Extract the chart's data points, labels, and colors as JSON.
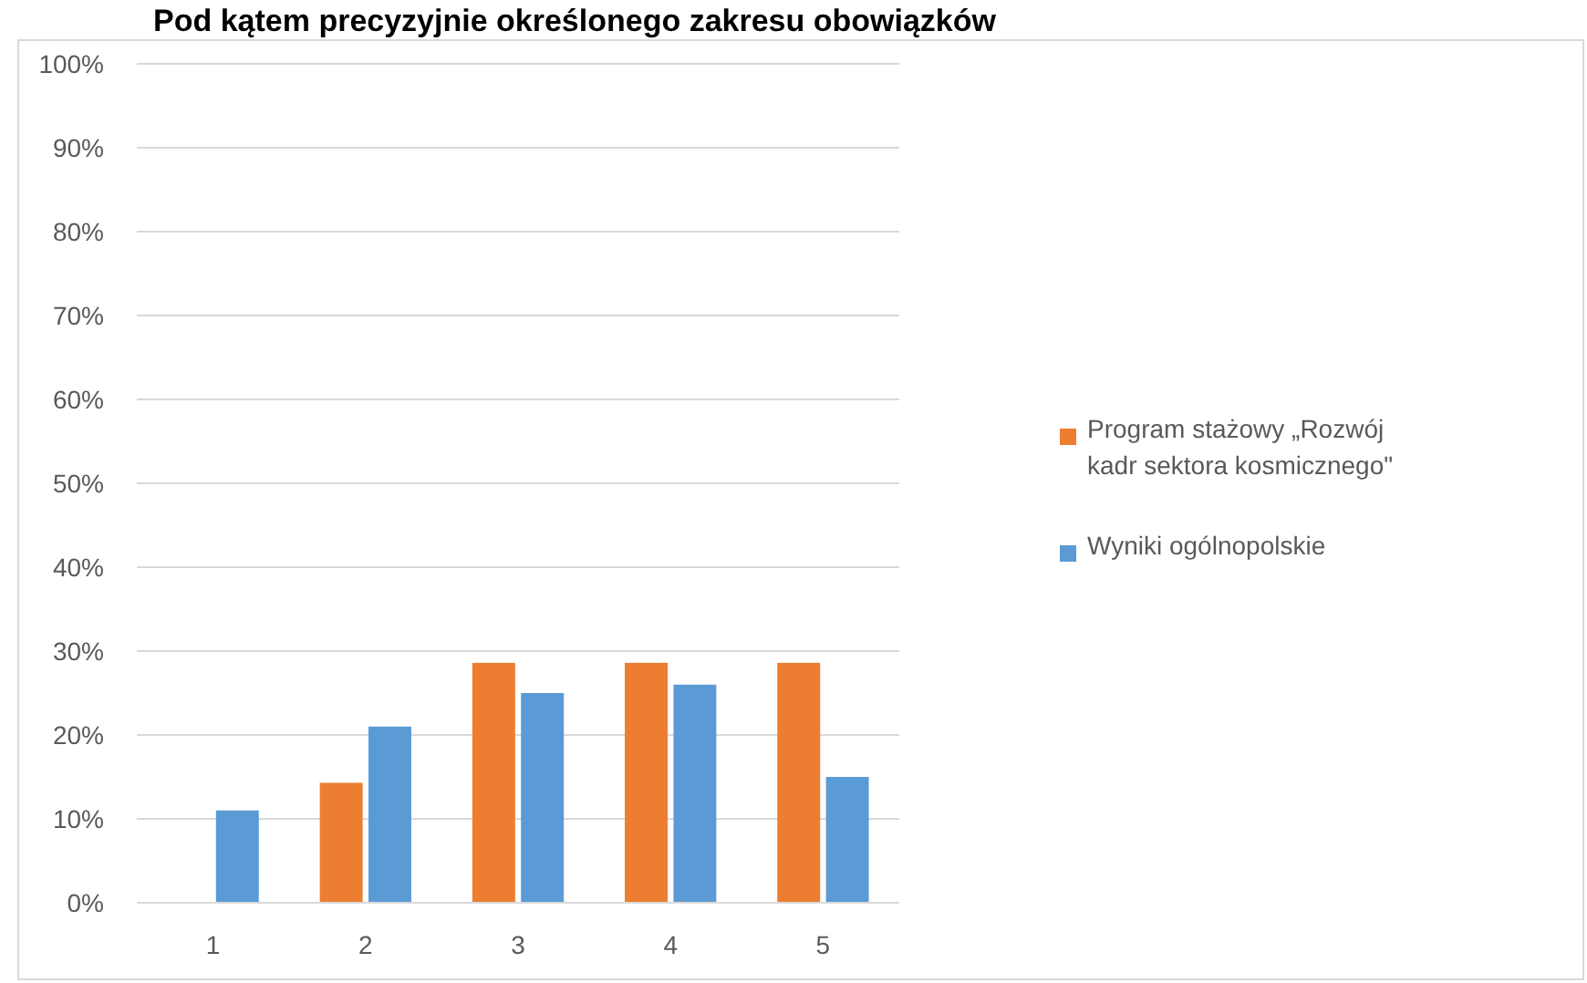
{
  "chart_data": {
    "type": "bar",
    "title": "Pod kątem precyzyjnie określonego zakresu obowiązków",
    "categories": [
      "1",
      "2",
      "3",
      "4",
      "5"
    ],
    "series": [
      {
        "name": "Program stażowy „Rozwój kadr sektora kosmicznego\"",
        "color": "#ed7d31",
        "values": [
          0,
          14.3,
          28.6,
          28.6,
          28.6
        ]
      },
      {
        "name": "Wyniki ogólnopolskie",
        "color": "#5b9bd5",
        "values": [
          11,
          21,
          25,
          26,
          15
        ]
      }
    ],
    "ylim": [
      0,
      100
    ],
    "yticks": [
      {
        "value": 0,
        "label": "0%"
      },
      {
        "value": 10,
        "label": "10%"
      },
      {
        "value": 20,
        "label": "20%"
      },
      {
        "value": 30,
        "label": "30%"
      },
      {
        "value": 40,
        "label": "40%"
      },
      {
        "value": 50,
        "label": "50%"
      },
      {
        "value": 60,
        "label": "60%"
      },
      {
        "value": 70,
        "label": "70%"
      },
      {
        "value": 80,
        "label": "80%"
      },
      {
        "value": 90,
        "label": "90%"
      },
      {
        "value": 100,
        "label": "100%"
      }
    ],
    "grid": "y",
    "legend": "right"
  }
}
